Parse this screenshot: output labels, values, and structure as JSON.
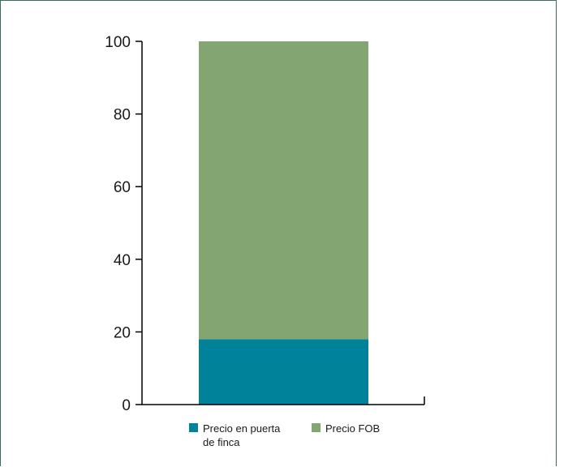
{
  "chart_data": {
    "type": "bar",
    "stacked": true,
    "categories": [
      ""
    ],
    "series": [
      {
        "name": "Precio en puerta de finca",
        "values": [
          18
        ],
        "color": "#00839a"
      },
      {
        "name": "Precio FOB",
        "values": [
          82
        ],
        "color": "#82a571"
      }
    ],
    "ylim": [
      0,
      100
    ],
    "yticks": [
      0,
      20,
      40,
      60,
      80,
      100
    ],
    "grid": false,
    "legend": "bottom"
  }
}
